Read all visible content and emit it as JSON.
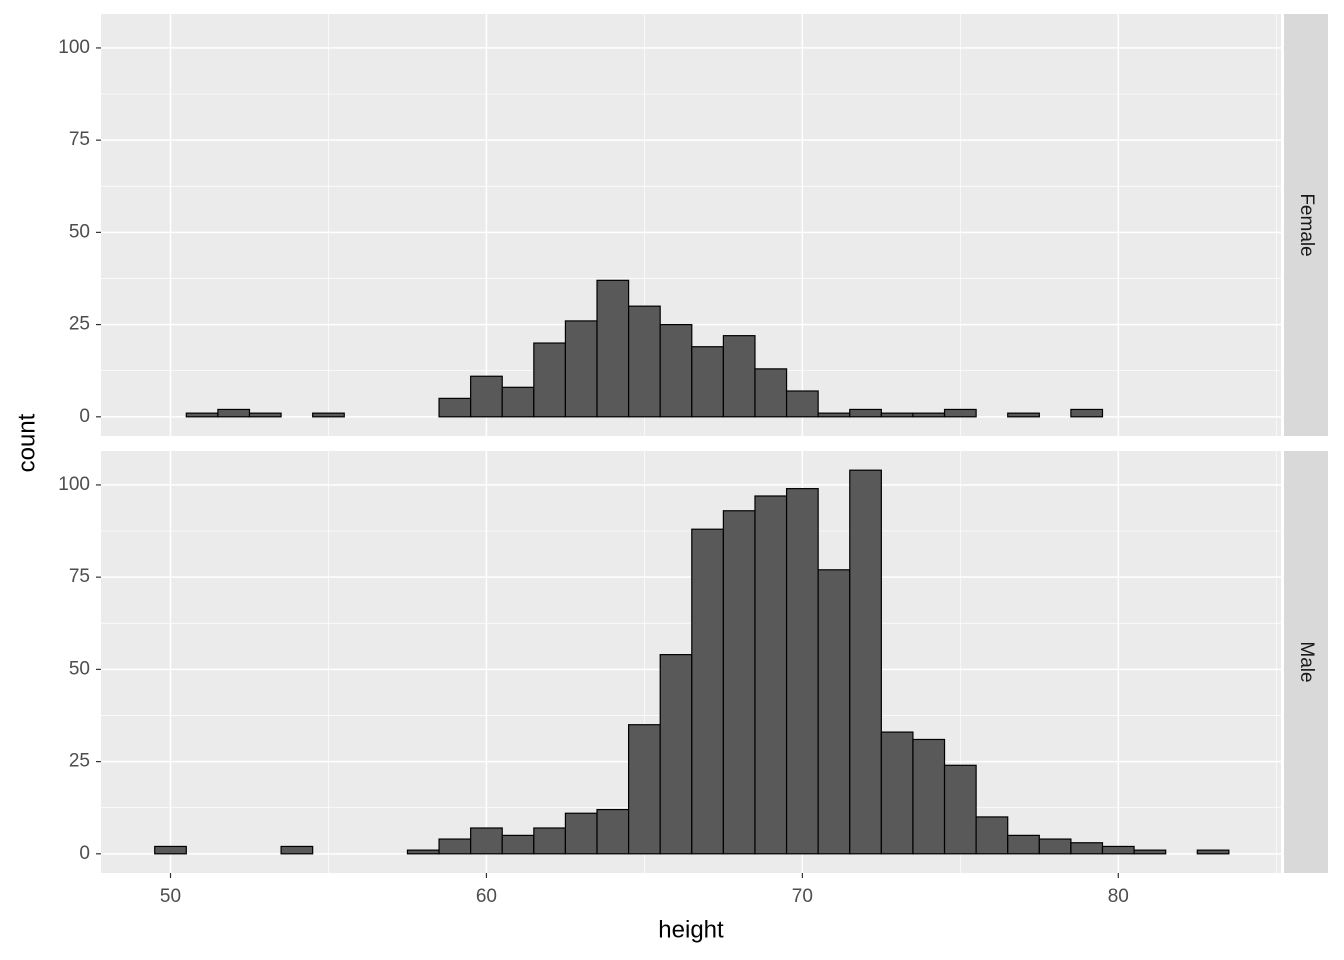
{
  "chart_data": {
    "type": "histogram",
    "x_label": "height",
    "y_label": "count",
    "bins": [
      49.5,
      50.5,
      51.5,
      52.5,
      53.5,
      54.5,
      55.5,
      56.5,
      57.5,
      58.5,
      59.5,
      60.5,
      61.5,
      62.5,
      63.5,
      64.5,
      65.5,
      66.5,
      67.5,
      68.5,
      69.5,
      70.5,
      71.5,
      72.5,
      73.5,
      74.5,
      75.5,
      76.5,
      77.5,
      78.5,
      79.5,
      80.5,
      81.5,
      82.5,
      83.5
    ],
    "series": [
      {
        "name": "Female",
        "values": [
          0,
          1,
          2,
          1,
          0,
          1,
          0,
          0,
          0,
          5,
          11,
          8,
          20,
          26,
          37,
          30,
          25,
          19,
          22,
          13,
          7,
          1,
          2,
          1,
          1,
          2,
          0,
          1,
          0,
          2,
          0,
          0,
          0,
          0
        ]
      },
      {
        "name": "Male",
        "values": [
          2,
          0,
          0,
          0,
          2,
          0,
          0,
          0,
          1,
          4,
          7,
          5,
          7,
          11,
          12,
          35,
          54,
          88,
          93,
          97,
          99,
          77,
          104,
          33,
          31,
          24,
          10,
          5,
          4,
          3,
          2,
          1,
          0,
          1
        ]
      }
    ],
    "color": "#595959",
    "edge_color": "#000000",
    "xlim": [
      47.8,
      85.15
    ],
    "xticks": [
      50,
      60,
      70,
      80
    ],
    "x_minor_ticks": [
      55,
      65,
      75,
      85
    ],
    "ylim": [
      -5.2,
      109.2
    ],
    "yticks": [
      0,
      25,
      50,
      75,
      100
    ],
    "y_minor_ticks": [
      12.5,
      37.5,
      62.5,
      87.5
    ],
    "grid": true
  }
}
